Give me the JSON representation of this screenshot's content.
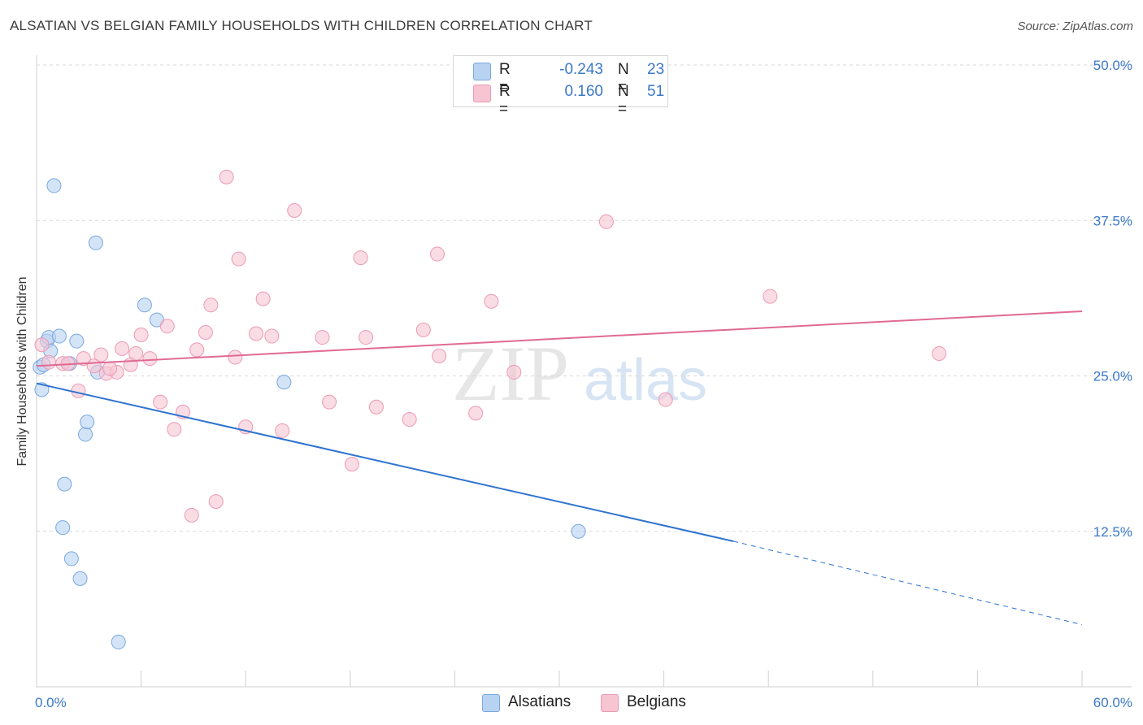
{
  "header": {
    "title": "ALSATIAN VS BELGIAN FAMILY HOUSEHOLDS WITH CHILDREN CORRELATION CHART",
    "source": "Source: ZipAtlas.com"
  },
  "legend": {
    "rows": [
      {
        "r_label": "R =",
        "r_value": "-0.243",
        "n_label": "N =",
        "n_value": "23",
        "color": "#b8d2f2"
      },
      {
        "r_label": "R =",
        "r_value": "0.160",
        "n_label": "N =",
        "n_value": "51",
        "color": "#f7c4d3"
      }
    ]
  },
  "bottom_legend": [
    {
      "label": "Alsatians",
      "color": "#b8d2f2"
    },
    {
      "label": "Belgians",
      "color": "#f7c4d3"
    }
  ],
  "colors": {
    "alsatian_fill": "#b8d2f2",
    "alsatian_stroke": "#7aa8e0",
    "alsatian_line": "#2f73d0",
    "belgian_fill": "#f7c4d3",
    "belgian_stroke": "#ec9ab4",
    "belgian_line": "#e06a93",
    "tick_text": "#3b78c9",
    "grid": "#d9d9d9"
  },
  "watermark": {
    "zip": "ZIP",
    "atlas": "atlas"
  },
  "chart_data": {
    "type": "scatter",
    "title": "ALSATIAN VS BELGIAN FAMILY HOUSEHOLDS WITH CHILDREN CORRELATION CHART",
    "xlabel": "",
    "ylabel": "Family Households with Children",
    "xlim": [
      0,
      60
    ],
    "ylim": [
      0,
      50
    ],
    "x_tick_labels": [
      {
        "value": 0,
        "label": "0.0%"
      },
      {
        "value": 60,
        "label": "60.0%"
      }
    ],
    "y_tick_labels": [
      {
        "value": 12.5,
        "label": "12.5%"
      },
      {
        "value": 25,
        "label": "25.0%"
      },
      {
        "value": 37.5,
        "label": "37.5%"
      },
      {
        "value": 50,
        "label": "50.0%"
      }
    ],
    "x_minor_ticks": [
      6,
      12,
      18,
      24,
      30,
      36,
      42,
      48,
      54,
      60
    ],
    "grid": true,
    "legend_position": "top-center",
    "series": [
      {
        "name": "Alsatians",
        "points": [
          [
            0.2,
            25.7
          ],
          [
            0.3,
            23.9
          ],
          [
            0.6,
            27.8
          ],
          [
            0.7,
            28.1
          ],
          [
            0.8,
            27.0
          ],
          [
            1.0,
            40.3
          ],
          [
            1.3,
            28.2
          ],
          [
            1.5,
            12.8
          ],
          [
            1.6,
            16.3
          ],
          [
            1.9,
            26.0
          ],
          [
            2.0,
            10.3
          ],
          [
            2.3,
            27.8
          ],
          [
            2.5,
            8.7
          ],
          [
            2.8,
            20.3
          ],
          [
            2.9,
            21.3
          ],
          [
            3.4,
            35.7
          ],
          [
            3.5,
            25.3
          ],
          [
            4.7,
            3.6
          ],
          [
            6.2,
            30.7
          ],
          [
            6.9,
            29.5
          ],
          [
            14.2,
            24.5
          ],
          [
            31.1,
            12.5
          ],
          [
            0.4,
            25.9
          ]
        ],
        "trend": {
          "x0": 0,
          "y0": 24.4,
          "x1": 40,
          "y1": 11.7,
          "dashed_to_x": 60,
          "dashed_to_y": 5.0
        }
      },
      {
        "name": "Belgians",
        "points": [
          [
            0.3,
            27.5
          ],
          [
            0.7,
            26.1
          ],
          [
            1.5,
            26.0
          ],
          [
            2.4,
            23.8
          ],
          [
            2.7,
            26.4
          ],
          [
            3.3,
            25.8
          ],
          [
            3.7,
            26.7
          ],
          [
            4.0,
            25.2
          ],
          [
            4.6,
            25.3
          ],
          [
            4.9,
            27.2
          ],
          [
            5.4,
            25.9
          ],
          [
            5.7,
            26.8
          ],
          [
            6.0,
            28.3
          ],
          [
            6.5,
            26.4
          ],
          [
            7.1,
            22.9
          ],
          [
            7.5,
            29.0
          ],
          [
            7.9,
            20.7
          ],
          [
            8.4,
            22.1
          ],
          [
            8.9,
            13.8
          ],
          [
            9.2,
            27.1
          ],
          [
            9.7,
            28.5
          ],
          [
            10.0,
            30.7
          ],
          [
            10.3,
            14.9
          ],
          [
            10.9,
            41.0
          ],
          [
            11.4,
            26.5
          ],
          [
            11.6,
            34.4
          ],
          [
            12.0,
            20.9
          ],
          [
            12.6,
            28.4
          ],
          [
            13.0,
            31.2
          ],
          [
            13.5,
            28.2
          ],
          [
            14.1,
            20.6
          ],
          [
            14.8,
            38.3
          ],
          [
            16.4,
            28.1
          ],
          [
            16.8,
            22.9
          ],
          [
            18.1,
            17.9
          ],
          [
            18.6,
            34.5
          ],
          [
            18.9,
            28.1
          ],
          [
            19.5,
            22.5
          ],
          [
            21.4,
            21.5
          ],
          [
            22.2,
            28.7
          ],
          [
            23.0,
            34.8
          ],
          [
            23.1,
            26.6
          ],
          [
            25.2,
            22.0
          ],
          [
            26.1,
            31.0
          ],
          [
            27.4,
            25.3
          ],
          [
            32.7,
            37.4
          ],
          [
            36.1,
            23.1
          ],
          [
            42.1,
            31.4
          ],
          [
            51.8,
            26.8
          ],
          [
            1.8,
            26.0
          ],
          [
            4.2,
            25.6
          ]
        ],
        "trend": {
          "x0": 0,
          "y0": 25.8,
          "x1": 60,
          "y1": 30.2
        }
      }
    ]
  }
}
